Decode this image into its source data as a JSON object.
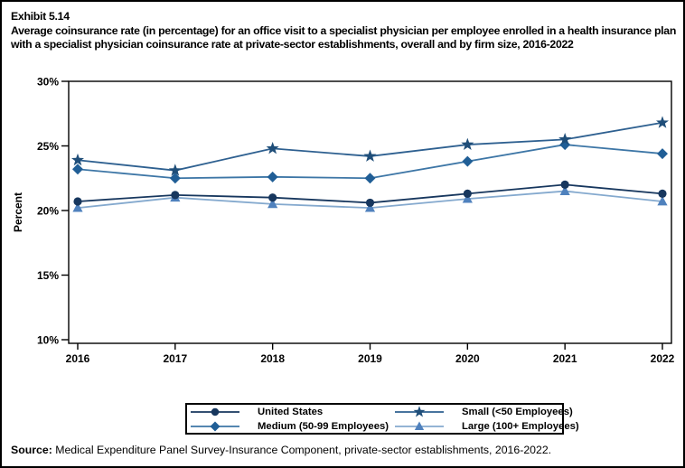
{
  "header": {
    "exhibit_label": "Exhibit 5.14",
    "title": "Average coinsurance rate (in percentage) for an office visit to a specialist physician per employee enrolled in a health insurance plan with a specialist physician coinsurance rate at private-sector establishments, overall and by firm size, 2016-2022"
  },
  "source": {
    "label": "Source:",
    "text": " Medical Expenditure Panel Survey-Insurance Component, private-sector establishments, 2016-2022."
  },
  "chart_data": {
    "type": "line",
    "title": "Average coinsurance rate (in percentage) for an office visit to a specialist physician per employee enrolled in a health insurance plan with a specialist physician coinsurance rate at private-sector establishments, overall and by firm size, 2016-2022",
    "xlabel": "",
    "ylabel": "Percent",
    "x": [
      "2016",
      "2017",
      "2018",
      "2019",
      "2020",
      "2021",
      "2022"
    ],
    "y_ticks": [
      "30%",
      "25%",
      "20%",
      "15%",
      "10%"
    ],
    "y_tick_values": [
      30,
      25,
      20,
      15,
      10
    ],
    "ylim": [
      9.7,
      30
    ],
    "grid": false,
    "legend_position": "bottom-box",
    "series": [
      {
        "name": "United States",
        "marker": "circle",
        "color": "#17375E",
        "line_color": "#17375E",
        "values": [
          20.7,
          21.2,
          21.0,
          20.6,
          21.3,
          22.0,
          21.3
        ]
      },
      {
        "name": "Small (<50 Employees)",
        "marker": "star",
        "color": "#1F4E79",
        "line_color": "#2E6090",
        "values": [
          23.9,
          23.1,
          24.8,
          24.2,
          25.1,
          25.5,
          26.8
        ]
      },
      {
        "name": "Medium (50-99 Employees)",
        "marker": "diamond",
        "color": "#205E96",
        "line_color": "#3D76A6",
        "values": [
          23.2,
          22.5,
          22.6,
          22.5,
          23.8,
          25.1,
          24.4
        ]
      },
      {
        "name": "Large (100+ Employees)",
        "marker": "triangle",
        "color": "#4F81BD",
        "line_color": "#84A9CE",
        "values": [
          20.2,
          21.0,
          20.5,
          20.2,
          20.9,
          21.5,
          20.7
        ]
      }
    ]
  }
}
